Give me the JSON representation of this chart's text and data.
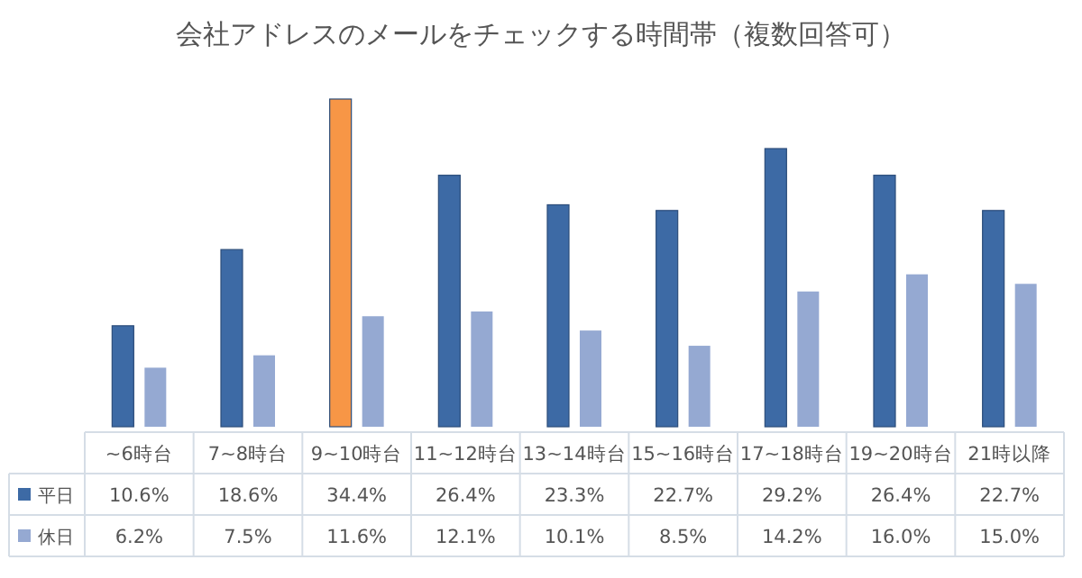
{
  "chart_data": {
    "type": "bar",
    "title": "会社アドレスのメールをチェックする時間帯（複数回答可）",
    "categories": [
      "~6時台",
      "7~8時台",
      "9~10時台",
      "11~12時台",
      "13~14時台",
      "15~16時台",
      "17~18時台",
      "19~20時台",
      "21時以降"
    ],
    "series": [
      {
        "name": "平日",
        "color": "#3d6aa5",
        "colors": [
          "#3d6aa5",
          "#3d6aa5",
          "#f79646",
          "#3d6aa5",
          "#3d6aa5",
          "#3d6aa5",
          "#3d6aa5",
          "#3d6aa5",
          "#3d6aa5"
        ],
        "values": [
          10.6,
          18.6,
          34.4,
          26.4,
          23.3,
          22.7,
          29.2,
          26.4,
          22.7
        ],
        "value_labels": [
          "10.6%",
          "18.6%",
          "34.4%",
          "26.4%",
          "23.3%",
          "22.7%",
          "29.2%",
          "26.4%",
          "22.7%"
        ]
      },
      {
        "name": "休日",
        "color": "#95a9d2",
        "values": [
          6.2,
          7.5,
          11.6,
          12.1,
          10.1,
          8.5,
          14.2,
          16.0,
          15.0
        ],
        "value_labels": [
          "6.2%",
          "7.5%",
          "11.6%",
          "12.1%",
          "10.1%",
          "8.5%",
          "14.2%",
          "16.0%",
          "15.0%"
        ]
      }
    ],
    "legend": "bottom",
    "grid": false
  }
}
